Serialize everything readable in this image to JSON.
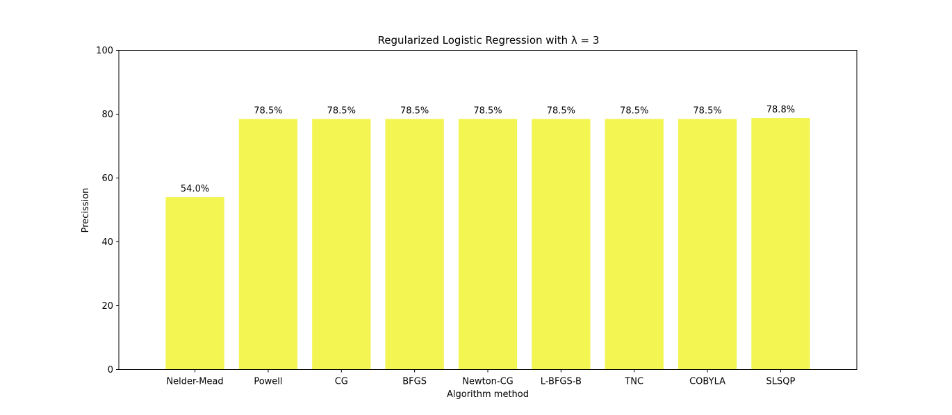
{
  "chart_data": {
    "type": "bar",
    "title": "Regularized Logistic Regression with λ = 3",
    "xlabel": "Algorithm method",
    "ylabel": "Precission",
    "categories": [
      "Nelder-Mead",
      "Powell",
      "CG",
      "BFGS",
      "Newton-CG",
      "L-BFGS-B",
      "TNC",
      "COBYLA",
      "SLSQP"
    ],
    "values": [
      54.0,
      78.5,
      78.5,
      78.5,
      78.5,
      78.5,
      78.5,
      78.5,
      78.8
    ],
    "data_labels": [
      "54.0%",
      "78.5%",
      "78.5%",
      "78.5%",
      "78.5%",
      "78.5%",
      "78.5%",
      "78.5%",
      "78.8%"
    ],
    "ylim": [
      0,
      100
    ],
    "yticks": [
      0,
      20,
      40,
      60,
      80,
      100
    ],
    "bar_color": "#f2f552",
    "grid": false,
    "legend": "none"
  }
}
